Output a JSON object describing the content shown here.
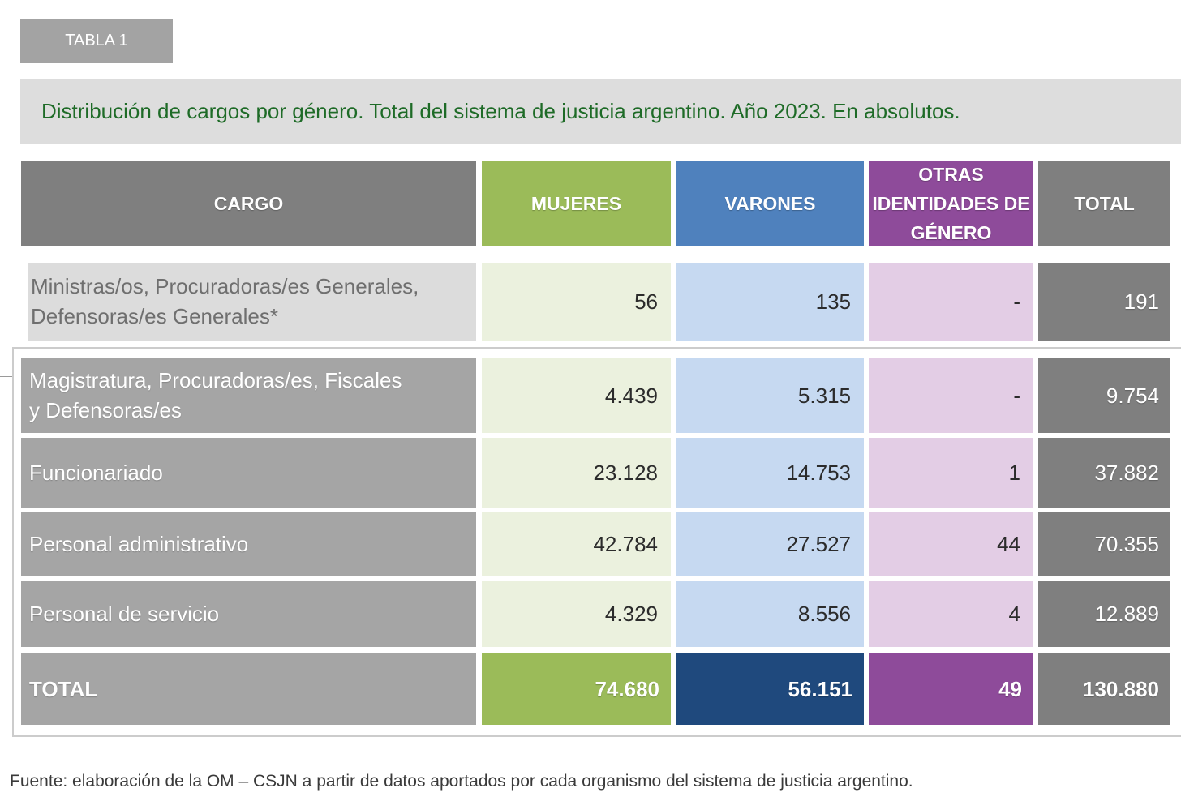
{
  "label": "TABLA 1",
  "title": "Distribución de cargos por género. Total del sistema de justicia argentino. Año 2023. En absolutos.",
  "headers": {
    "cargo": "CARGO",
    "mujeres": "MUJERES",
    "varones": "VARONES",
    "otras_line1": "OTRAS",
    "otras_line2": "IDENTIDADES DE",
    "otras_line3": "GÉNERO",
    "total": "TOTAL"
  },
  "rows": [
    {
      "line1": "Ministras/os, Procuradoras/es Generales,",
      "line2": "Defensoras/es Generales*",
      "mujeres": "56",
      "varones": "135",
      "otras": "-",
      "total": "191"
    },
    {
      "line1": "Magistratura, Procuradoras/es, Fiscales",
      "line2": "y Defensoras/es",
      "mujeres": "4.439",
      "varones": "5.315",
      "otras": "-",
      "total": "9.754"
    },
    {
      "line1": "Funcionariado",
      "line2": "",
      "mujeres": "23.128",
      "varones": "14.753",
      "otras": "1",
      "total": "37.882"
    },
    {
      "line1": "Personal administrativo",
      "line2": "",
      "mujeres": "42.784",
      "varones": "27.527",
      "otras": "44",
      "total": "70.355"
    },
    {
      "line1": "Personal de servicio",
      "line2": "",
      "mujeres": "4.329",
      "varones": "8.556",
      "otras": "4",
      "total": "12.889"
    }
  ],
  "totals": {
    "label": "TOTAL",
    "mujeres": "74.680",
    "varones": "56.151",
    "otras": "49",
    "total": "130.880"
  },
  "source": "Fuente: elaboración de la OM – CSJN a partir de datos aportados por cada organismo del sistema de justicia argentino.",
  "colors": {
    "header_gray": "#7f7f7f",
    "mujeres_header": "#9bbb59",
    "varones_header": "#4f81bd",
    "otras_header": "#8e4b9a",
    "mujeres_cell": "#ebf1de",
    "varones_cell": "#c6d9f1",
    "otras_cell": "#e3cde5",
    "label_cell": "#a5a5a5",
    "total_cell": "#7f7f7f",
    "varones_total": "#1f497d",
    "title_text": "#1e6b27"
  }
}
